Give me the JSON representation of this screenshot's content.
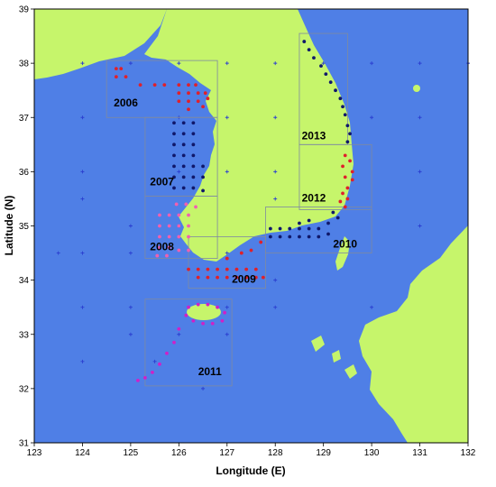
{
  "map": {
    "xlabel": "Longitude (E)",
    "ylabel": "Latitude (N)",
    "xlim": [
      123,
      132
    ],
    "ylim": [
      31,
      39
    ],
    "x_ticks": [
      "123",
      "124",
      "125",
      "126",
      "127",
      "128",
      "129",
      "130",
      "131",
      "132"
    ],
    "y_ticks": [
      "31",
      "32",
      "33",
      "34",
      "35",
      "36",
      "37",
      "38",
      "39"
    ],
    "colors": {
      "sea": "#4f7fe6",
      "land": "#c6f56b",
      "grid_marker": "#2b3fd0",
      "box": "#7f8aa0",
      "dot_red": "#e0202a",
      "dot_navy": "#10186a",
      "dot_magenta": "#d020c8",
      "dot_pink": "#f060b0"
    },
    "regions": [
      {
        "label": "2006",
        "lon": [
          124.5,
          126.8
        ],
        "lat": [
          37.0,
          38.05
        ],
        "label_at": [
          124.65,
          37.2
        ]
      },
      {
        "label": "2007",
        "lon": [
          125.3,
          126.8
        ],
        "lat": [
          35.55,
          37.0
        ],
        "label_at": [
          125.4,
          35.75
        ]
      },
      {
        "label": "2008",
        "lon": [
          125.3,
          126.8
        ],
        "lat": [
          34.4,
          35.55
        ],
        "label_at": [
          125.4,
          34.55
        ]
      },
      {
        "label": "2009",
        "lon": [
          126.2,
          127.8
        ],
        "lat": [
          33.85,
          34.8
        ],
        "label_at": [
          127.1,
          33.95
        ]
      },
      {
        "label": "2010",
        "lon": [
          127.8,
          130.0
        ],
        "lat": [
          34.5,
          35.35
        ],
        "label_at": [
          129.2,
          34.6
        ]
      },
      {
        "label": "2011",
        "lon": [
          125.3,
          127.1
        ],
        "lat": [
          32.05,
          33.65
        ],
        "label_at": [
          126.4,
          32.25
        ]
      },
      {
        "label": "2012",
        "lon": [
          128.5,
          130.0
        ],
        "lat": [
          35.3,
          36.5
        ],
        "label_at": [
          128.55,
          35.45
        ]
      },
      {
        "label": "2013",
        "lon": [
          128.5,
          129.5
        ],
        "lat": [
          36.5,
          38.55
        ],
        "label_at": [
          128.55,
          36.6
        ]
      }
    ],
    "stations": {
      "red": [
        [
          124.7,
          37.9
        ],
        [
          124.8,
          37.9
        ],
        [
          124.7,
          37.75
        ],
        [
          124.9,
          37.75
        ],
        [
          125.2,
          37.6
        ],
        [
          125.5,
          37.6
        ],
        [
          125.7,
          37.6
        ],
        [
          126.0,
          37.6
        ],
        [
          126.2,
          37.6
        ],
        [
          126.35,
          37.6
        ],
        [
          126.0,
          37.45
        ],
        [
          126.2,
          37.45
        ],
        [
          126.4,
          37.45
        ],
        [
          126.55,
          37.45
        ],
        [
          126.0,
          37.3
        ],
        [
          126.2,
          37.3
        ],
        [
          126.4,
          37.3
        ],
        [
          126.6,
          37.35
        ],
        [
          126.2,
          37.15
        ],
        [
          126.5,
          37.2
        ],
        [
          129.45,
          36.3
        ],
        [
          129.55,
          36.2
        ],
        [
          129.4,
          36.1
        ],
        [
          129.6,
          36.0
        ],
        [
          129.45,
          35.9
        ],
        [
          129.6,
          35.85
        ],
        [
          129.5,
          35.7
        ],
        [
          129.4,
          35.6
        ],
        [
          129.5,
          35.5
        ],
        [
          129.35,
          35.45
        ],
        [
          129.45,
          35.35
        ],
        [
          126.2,
          34.2
        ],
        [
          126.4,
          34.2
        ],
        [
          126.6,
          34.2
        ],
        [
          126.8,
          34.2
        ],
        [
          127.0,
          34.2
        ],
        [
          127.2,
          34.2
        ],
        [
          127.4,
          34.2
        ],
        [
          127.6,
          34.2
        ],
        [
          126.4,
          34.05
        ],
        [
          126.6,
          34.05
        ],
        [
          126.8,
          34.05
        ],
        [
          127.0,
          34.05
        ],
        [
          127.2,
          34.05
        ],
        [
          127.4,
          34.05
        ],
        [
          127.6,
          34.05
        ],
        [
          127.75,
          34.05
        ],
        [
          127.0,
          34.4
        ],
        [
          127.3,
          34.5
        ],
        [
          127.5,
          34.55
        ],
        [
          127.7,
          34.7
        ]
      ],
      "navy": [
        [
          125.9,
          36.9
        ],
        [
          126.1,
          36.9
        ],
        [
          126.3,
          36.9
        ],
        [
          125.9,
          36.7
        ],
        [
          126.1,
          36.7
        ],
        [
          126.3,
          36.7
        ],
        [
          125.9,
          36.5
        ],
        [
          126.1,
          36.5
        ],
        [
          126.3,
          36.5
        ],
        [
          125.9,
          36.3
        ],
        [
          126.1,
          36.3
        ],
        [
          126.3,
          36.3
        ],
        [
          125.9,
          36.1
        ],
        [
          126.1,
          36.1
        ],
        [
          126.3,
          36.1
        ],
        [
          126.5,
          36.1
        ],
        [
          125.9,
          35.9
        ],
        [
          126.1,
          35.9
        ],
        [
          126.3,
          35.9
        ],
        [
          126.5,
          35.9
        ],
        [
          125.9,
          35.7
        ],
        [
          126.1,
          35.7
        ],
        [
          126.3,
          35.7
        ],
        [
          126.5,
          35.65
        ],
        [
          128.6,
          38.4
        ],
        [
          128.7,
          38.25
        ],
        [
          128.8,
          38.1
        ],
        [
          128.95,
          37.95
        ],
        [
          129.05,
          37.8
        ],
        [
          129.15,
          37.65
        ],
        [
          129.25,
          37.5
        ],
        [
          129.35,
          37.35
        ],
        [
          129.4,
          37.2
        ],
        [
          129.45,
          37.05
        ],
        [
          129.5,
          36.85
        ],
        [
          129.55,
          36.7
        ],
        [
          129.5,
          36.55
        ],
        [
          127.9,
          34.95
        ],
        [
          128.1,
          34.95
        ],
        [
          128.3,
          34.95
        ],
        [
          128.5,
          34.95
        ],
        [
          128.7,
          34.95
        ],
        [
          128.9,
          34.95
        ],
        [
          129.1,
          35.05
        ],
        [
          127.9,
          34.8
        ],
        [
          128.1,
          34.8
        ],
        [
          128.3,
          34.8
        ],
        [
          128.5,
          34.8
        ],
        [
          128.7,
          34.8
        ],
        [
          128.9,
          34.8
        ],
        [
          129.1,
          34.85
        ],
        [
          129.3,
          35.15
        ],
        [
          129.2,
          35.25
        ],
        [
          128.5,
          35.05
        ],
        [
          128.7,
          35.1
        ]
      ],
      "magenta": [
        [
          126.2,
          33.5
        ],
        [
          126.4,
          33.55
        ],
        [
          126.6,
          33.55
        ],
        [
          126.8,
          33.5
        ],
        [
          126.95,
          33.4
        ],
        [
          126.9,
          33.25
        ],
        [
          126.7,
          33.2
        ],
        [
          126.5,
          33.2
        ],
        [
          126.3,
          33.25
        ],
        [
          126.15,
          33.35
        ],
        [
          126.0,
          33.1
        ],
        [
          125.9,
          32.85
        ],
        [
          125.75,
          32.65
        ],
        [
          125.6,
          32.45
        ],
        [
          125.45,
          32.3
        ],
        [
          125.3,
          32.2
        ],
        [
          125.15,
          32.15
        ]
      ],
      "pink": [
        [
          125.6,
          35.2
        ],
        [
          125.8,
          35.2
        ],
        [
          126.0,
          35.2
        ],
        [
          126.2,
          35.2
        ],
        [
          125.6,
          35.0
        ],
        [
          125.8,
          35.0
        ],
        [
          126.0,
          35.0
        ],
        [
          126.2,
          35.0
        ],
        [
          125.6,
          34.8
        ],
        [
          125.8,
          34.8
        ],
        [
          126.0,
          34.8
        ],
        [
          126.2,
          34.8
        ],
        [
          125.6,
          34.6
        ],
        [
          125.8,
          34.6
        ],
        [
          126.0,
          34.55
        ],
        [
          126.2,
          34.55
        ],
        [
          125.55,
          34.45
        ],
        [
          125.75,
          34.45
        ],
        [
          125.95,
          35.4
        ],
        [
          126.15,
          35.4
        ],
        [
          126.35,
          35.35
        ]
      ]
    },
    "grid_markers": [
      [
        124,
        38
      ],
      [
        125,
        38
      ],
      [
        126,
        38
      ],
      [
        127,
        38
      ],
      [
        128,
        38
      ],
      [
        129,
        38
      ],
      [
        130,
        38
      ],
      [
        131,
        38
      ],
      [
        132,
        38
      ],
      [
        124,
        37
      ],
      [
        126,
        37
      ],
      [
        127,
        37
      ],
      [
        128,
        37
      ],
      [
        130,
        37
      ],
      [
        131,
        37
      ],
      [
        124,
        36
      ],
      [
        126,
        36
      ],
      [
        127,
        36
      ],
      [
        128,
        36
      ],
      [
        131,
        36
      ],
      [
        124,
        35.5
      ],
      [
        125,
        35
      ],
      [
        126,
        35
      ],
      [
        128,
        35.5
      ],
      [
        131,
        35
      ],
      [
        123.5,
        34.5
      ],
      [
        124,
        34.5
      ],
      [
        125,
        34.5
      ],
      [
        127,
        34.5
      ],
      [
        128,
        34
      ],
      [
        124,
        33.5
      ],
      [
        125,
        33.5
      ],
      [
        127,
        33.5
      ],
      [
        128,
        33.5
      ],
      [
        130,
        33.5
      ],
      [
        125,
        33
      ],
      [
        126,
        33
      ],
      [
        127,
        33
      ],
      [
        124,
        32.5
      ],
      [
        125.5,
        32.5
      ],
      [
        126.5,
        32
      ]
    ]
  }
}
